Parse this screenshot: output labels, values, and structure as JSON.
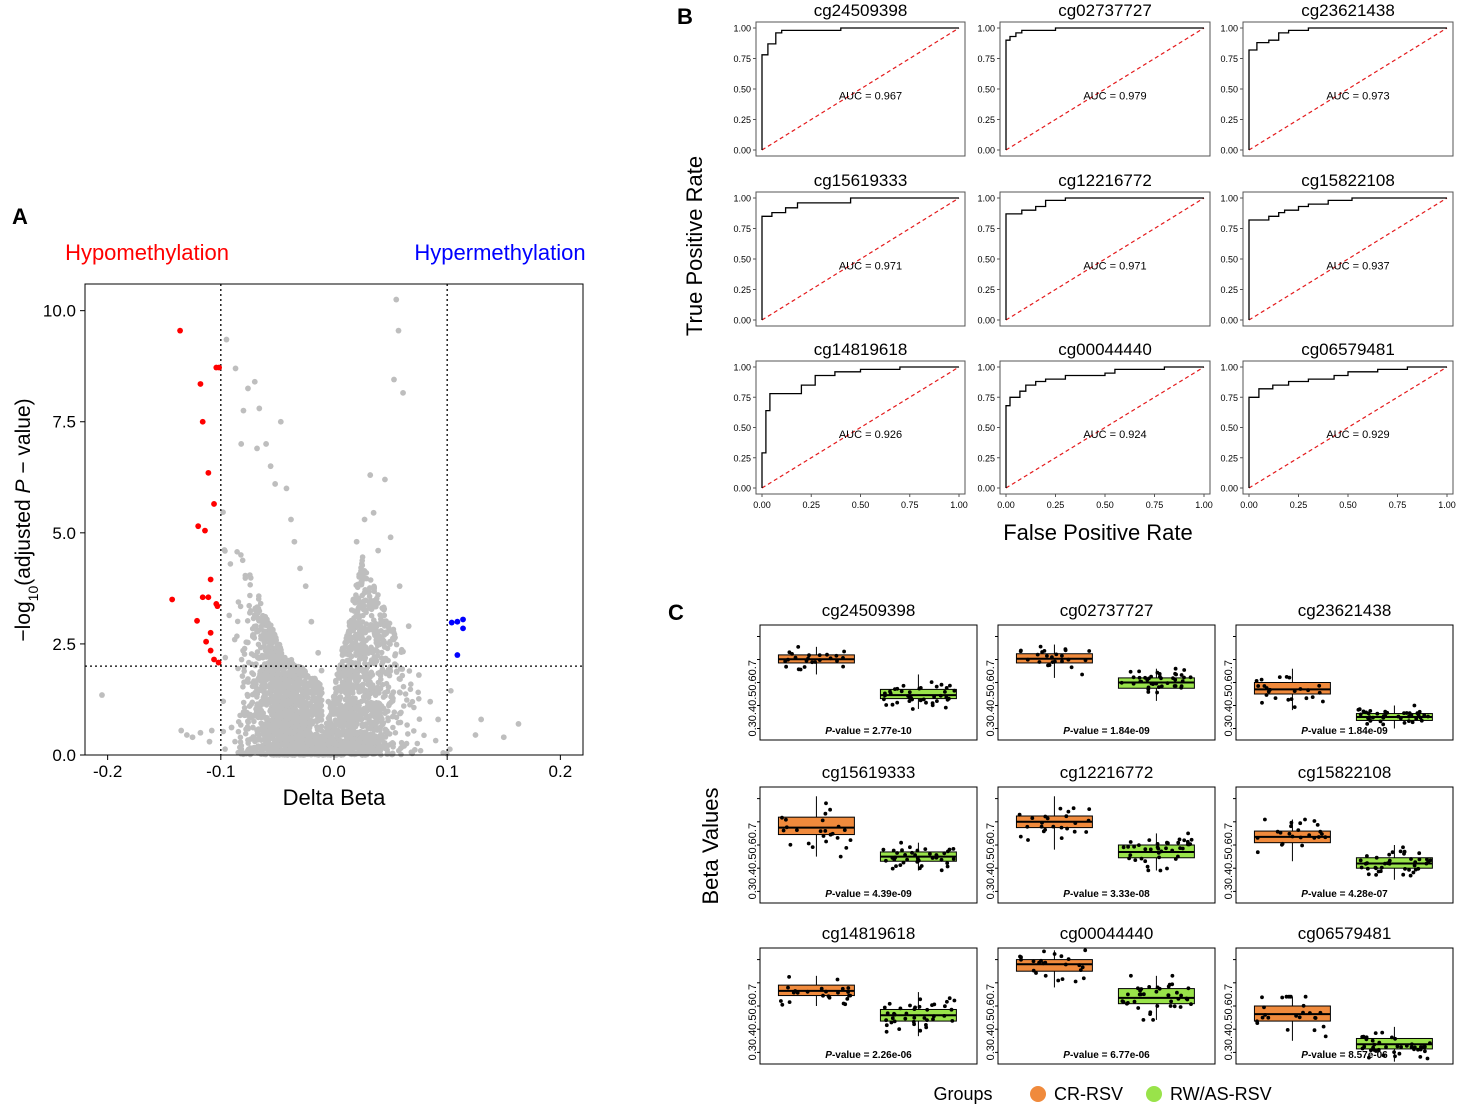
{
  "colors": {
    "hypo": "#ff0000",
    "hyper": "#0000ff",
    "grey_points": "#bebebe",
    "cr_rsv": "#f08a3c",
    "rw_as_rsv": "#99e34a",
    "roc_line": "#000000",
    "diagonal": "#e41a1c"
  },
  "chart_data": [
    {
      "type": "scatter",
      "panel_label": "A",
      "title": "",
      "xlabel": "Delta Beta",
      "ylabel_parts": [
        "−log",
        "10",
        "(adjusted ",
        "P",
        " − value)"
      ],
      "xlim": [
        -0.22,
        0.22
      ],
      "ylim": [
        0,
        10.6
      ],
      "x_ticks": [
        -0.2,
        -0.1,
        0.0,
        0.1,
        0.2
      ],
      "x_tick_labels": [
        "-0.2",
        "-0.1",
        "0.0",
        "0.1",
        "0.2"
      ],
      "y_ticks": [
        0,
        2.5,
        5.0,
        7.5,
        10.0
      ],
      "y_tick_labels": [
        "0.0",
        "2.5",
        "5.0",
        "7.5",
        "10.0"
      ],
      "thresholds": {
        "delta_beta": [
          -0.1,
          0.1
        ],
        "neg_log10_adj_p": 2.0
      },
      "annotations": {
        "hypo": "Hypomethylation",
        "hyper": "Hypermethylation"
      },
      "series": [
        {
          "name": "Hypomethylation",
          "color_key": "hypo",
          "x": [
            -0.136,
            -0.104,
            -0.1015,
            -0.118,
            -0.116,
            -0.111,
            -0.106,
            -0.12,
            -0.114,
            -0.109,
            -0.104,
            -0.143,
            -0.116,
            -0.111,
            -0.103,
            -0.121,
            -0.109,
            -0.113,
            -0.109,
            -0.106,
            -0.102
          ],
          "y": [
            9.55,
            8.72,
            8.72,
            8.35,
            7.5,
            6.35,
            5.65,
            5.15,
            5.05,
            3.95,
            3.4,
            3.5,
            3.55,
            3.55,
            3.35,
            3.02,
            2.75,
            2.55,
            2.35,
            2.15,
            2.08
          ]
        },
        {
          "name": "Hypermethylation",
          "color_key": "hyper",
          "x": [
            0.104,
            0.109,
            0.114,
            0.114,
            0.109
          ],
          "y": [
            2.98,
            3.0,
            3.05,
            2.85,
            2.25
          ]
        },
        {
          "name": "Not significant",
          "color_key": "grey_points",
          "x": [
            -0.205,
            -0.135,
            -0.13,
            -0.125,
            -0.118,
            -0.11,
            -0.108,
            -0.095,
            -0.087,
            -0.08,
            -0.082,
            -0.076,
            -0.07,
            -0.066,
            -0.068,
            -0.06,
            -0.056,
            -0.052,
            -0.047,
            -0.042,
            -0.038,
            -0.035,
            -0.03,
            -0.025,
            -0.02,
            -0.014,
            -0.011,
            -0.005,
            0.055,
            0.057,
            0.053,
            0.061,
            0.02,
            0.027,
            0.035,
            0.039,
            0.032,
            0.045,
            0.05,
            0.058,
            0.066,
            0.075,
            0.085,
            0.092,
            0.13,
            0.15,
            0.163,
            0.125
          ],
          "y": [
            1.35,
            0.55,
            0.45,
            0.4,
            0.5,
            0.3,
            0.55,
            9.35,
            8.7,
            7.75,
            7.0,
            8.25,
            8.4,
            7.8,
            6.9,
            7.0,
            6.5,
            6.1,
            7.5,
            6.0,
            5.3,
            4.8,
            4.2,
            3.8,
            3.0,
            2.3,
            1.9,
            1.2,
            10.25,
            9.55,
            8.45,
            8.15,
            4.8,
            5.3,
            5.45,
            4.6,
            6.3,
            6.2,
            4.9,
            3.8,
            2.9,
            1.8,
            1.2,
            0.8,
            0.8,
            0.4,
            0.7,
            0.45
          ]
        }
      ]
    },
    {
      "type": "line",
      "panel_label": "B",
      "xlabel": "False Positive Rate",
      "ylabel": "True Positive Rate",
      "xlim": [
        0,
        1
      ],
      "ylim": [
        0,
        1
      ],
      "ticks": [
        0,
        0.25,
        0.5,
        0.75,
        1.0
      ],
      "tick_labels": [
        "0.00",
        "0.25",
        "0.50",
        "0.75",
        "1.00"
      ],
      "auc_label_prefix": "AUC = ",
      "panels": [
        {
          "title": "cg24509398",
          "auc": "0.967",
          "fpr": [
            0,
            0,
            0.03,
            0.03,
            0.07,
            0.07,
            0.1,
            0.1,
            0.4,
            0.4,
            1
          ],
          "tpr": [
            0,
            0.78,
            0.78,
            0.87,
            0.87,
            0.96,
            0.96,
            0.98,
            0.98,
            1,
            1
          ]
        },
        {
          "title": "cg02737727",
          "auc": "0.979",
          "fpr": [
            0,
            0,
            0.02,
            0.02,
            0.05,
            0.05,
            0.08,
            0.08,
            0.25,
            0.25,
            1
          ],
          "tpr": [
            0,
            0.9,
            0.9,
            0.93,
            0.93,
            0.96,
            0.96,
            0.98,
            0.98,
            1,
            1
          ]
        },
        {
          "title": "cg23621438",
          "auc": "0.973",
          "fpr": [
            0,
            0,
            0.04,
            0.04,
            0.1,
            0.1,
            0.15,
            0.15,
            0.2,
            0.2,
            0.3,
            0.3,
            1
          ],
          "tpr": [
            0,
            0.82,
            0.82,
            0.88,
            0.88,
            0.9,
            0.9,
            0.96,
            0.96,
            0.98,
            0.98,
            1,
            1
          ]
        },
        {
          "title": "cg15619333",
          "auc": "0.971",
          "fpr": [
            0,
            0,
            0.05,
            0.05,
            0.12,
            0.12,
            0.18,
            0.18,
            0.45,
            0.45,
            1
          ],
          "tpr": [
            0,
            0.85,
            0.85,
            0.88,
            0.88,
            0.92,
            0.92,
            0.96,
            0.96,
            1,
            1
          ]
        },
        {
          "title": "cg12216772",
          "auc": "0.971",
          "fpr": [
            0,
            0,
            0.08,
            0.08,
            0.15,
            0.15,
            0.2,
            0.2,
            0.3,
            0.3,
            1
          ],
          "tpr": [
            0,
            0.87,
            0.87,
            0.9,
            0.9,
            0.93,
            0.93,
            0.98,
            0.98,
            1,
            1
          ]
        },
        {
          "title": "cg15822108",
          "auc": "0.937",
          "fpr": [
            0,
            0,
            0.1,
            0.1,
            0.15,
            0.15,
            0.18,
            0.18,
            0.25,
            0.25,
            0.3,
            0.3,
            0.4,
            0.4,
            0.52,
            0.52,
            0.8,
            0.8,
            1
          ],
          "tpr": [
            0,
            0.82,
            0.82,
            0.85,
            0.85,
            0.88,
            0.88,
            0.9,
            0.9,
            0.93,
            0.93,
            0.95,
            0.95,
            0.98,
            0.98,
            1,
            1,
            1,
            1
          ]
        },
        {
          "title": "cg14819618",
          "auc": "0.926",
          "fpr": [
            0,
            0,
            0.02,
            0.02,
            0.04,
            0.04,
            0.2,
            0.2,
            0.27,
            0.27,
            0.37,
            0.37,
            0.5,
            0.5,
            0.7,
            0.7,
            1
          ],
          "tpr": [
            0,
            0.29,
            0.29,
            0.64,
            0.64,
            0.78,
            0.78,
            0.85,
            0.85,
            0.93,
            0.93,
            0.96,
            0.96,
            0.98,
            0.98,
            1,
            1
          ]
        },
        {
          "title": "cg00044440",
          "auc": "0.924",
          "fpr": [
            0,
            0,
            0.02,
            0.02,
            0.07,
            0.07,
            0.1,
            0.1,
            0.15,
            0.15,
            0.2,
            0.2,
            0.3,
            0.3,
            0.5,
            0.5,
            0.55,
            0.55,
            0.8,
            0.8,
            1
          ],
          "tpr": [
            0,
            0.68,
            0.68,
            0.75,
            0.75,
            0.8,
            0.8,
            0.85,
            0.85,
            0.88,
            0.88,
            0.9,
            0.9,
            0.93,
            0.93,
            0.95,
            0.95,
            0.98,
            0.98,
            1,
            1
          ]
        },
        {
          "title": "cg06579481",
          "auc": "0.929",
          "fpr": [
            0,
            0,
            0.05,
            0.05,
            0.12,
            0.12,
            0.2,
            0.2,
            0.3,
            0.3,
            0.43,
            0.43,
            0.5,
            0.5,
            0.65,
            0.65,
            0.8,
            0.8,
            1
          ],
          "tpr": [
            0,
            0.75,
            0.75,
            0.82,
            0.82,
            0.85,
            0.85,
            0.88,
            0.88,
            0.9,
            0.9,
            0.93,
            0.93,
            0.96,
            0.96,
            0.98,
            0.98,
            1,
            1
          ]
        }
      ]
    },
    {
      "type": "box",
      "panel_label": "C",
      "ylabel": "Beta Values",
      "ylim": [
        0.25,
        0.75
      ],
      "y_ticks": [
        0.3,
        0.4,
        0.5,
        0.6,
        0.7
      ],
      "y_tick_labels": [
        "0.3",
        "0.4",
        "0.5",
        "0.6",
        "0.7"
      ],
      "p_label": "P",
      "p_suffix": "-value  = ",
      "groups": [
        "CR-RSV",
        "RW/AS-RSV"
      ],
      "legend_title": "Groups",
      "panels": [
        {
          "title": "cg24509398",
          "p_value": "2.77e-10",
          "boxes": [
            {
              "q1": 0.585,
              "median": 0.601,
              "q3": 0.62,
              "whisker_low": 0.535,
              "whisker_high": 0.655
            },
            {
              "q1": 0.43,
              "median": 0.445,
              "q3": 0.47,
              "whisker_low": 0.385,
              "whisker_high": 0.535
            }
          ]
        },
        {
          "title": "cg02737727",
          "p_value": "1.84e-09",
          "boxes": [
            {
              "q1": 0.585,
              "median": 0.603,
              "q3": 0.625,
              "whisker_low": 0.52,
              "whisker_high": 0.665
            },
            {
              "q1": 0.475,
              "median": 0.5,
              "q3": 0.52,
              "whisker_low": 0.42,
              "whisker_high": 0.56
            }
          ]
        },
        {
          "title": "cg23621438",
          "p_value": "1.84e-09",
          "boxes": [
            {
              "q1": 0.45,
              "median": 0.47,
              "q3": 0.5,
              "whisker_low": 0.38,
              "whisker_high": 0.56
            },
            {
              "q1": 0.335,
              "median": 0.35,
              "q3": 0.365,
              "whisker_low": 0.3,
              "whisker_high": 0.4
            }
          ]
        },
        {
          "title": "cg15619333",
          "p_value": "4.39e-09",
          "boxes": [
            {
              "q1": 0.545,
              "median": 0.575,
              "q3": 0.62,
              "whisker_low": 0.45,
              "whisker_high": 0.71
            },
            {
              "q1": 0.43,
              "median": 0.45,
              "q3": 0.47,
              "whisker_low": 0.39,
              "whisker_high": 0.51
            }
          ]
        },
        {
          "title": "cg12216772",
          "p_value": "3.33e-08",
          "boxes": [
            {
              "q1": 0.575,
              "median": 0.6,
              "q3": 0.625,
              "whisker_low": 0.48,
              "whisker_high": 0.71
            },
            {
              "q1": 0.445,
              "median": 0.47,
              "q3": 0.5,
              "whisker_low": 0.39,
              "whisker_high": 0.55
            }
          ]
        },
        {
          "title": "cg15822108",
          "p_value": "4.28e-07",
          "boxes": [
            {
              "q1": 0.51,
              "median": 0.535,
              "q3": 0.56,
              "whisker_low": 0.43,
              "whisker_high": 0.61
            },
            {
              "q1": 0.4,
              "median": 0.42,
              "q3": 0.445,
              "whisker_low": 0.35,
              "whisker_high": 0.5
            }
          ]
        },
        {
          "title": "cg14819618",
          "p_value": "2.26e-06",
          "boxes": [
            {
              "q1": 0.545,
              "median": 0.565,
              "q3": 0.59,
              "whisker_low": 0.5,
              "whisker_high": 0.63
            },
            {
              "q1": 0.435,
              "median": 0.46,
              "q3": 0.485,
              "whisker_low": 0.37,
              "whisker_high": 0.56
            }
          ]
        },
        {
          "title": "cg00044440",
          "p_value": "6.77e-06",
          "boxes": [
            {
              "q1": 0.65,
              "median": 0.68,
              "q3": 0.7,
              "whisker_low": 0.58,
              "whisker_high": 0.74
            },
            {
              "q1": 0.51,
              "median": 0.535,
              "q3": 0.575,
              "whisker_low": 0.44,
              "whisker_high": 0.63
            }
          ]
        },
        {
          "title": "cg06579481",
          "p_value": "8.57e-06",
          "boxes": [
            {
              "q1": 0.435,
              "median": 0.465,
              "q3": 0.5,
              "whisker_low": 0.35,
              "whisker_high": 0.54
            },
            {
              "q1": 0.315,
              "median": 0.335,
              "q3": 0.36,
              "whisker_low": 0.26,
              "whisker_high": 0.41
            }
          ]
        }
      ]
    }
  ]
}
